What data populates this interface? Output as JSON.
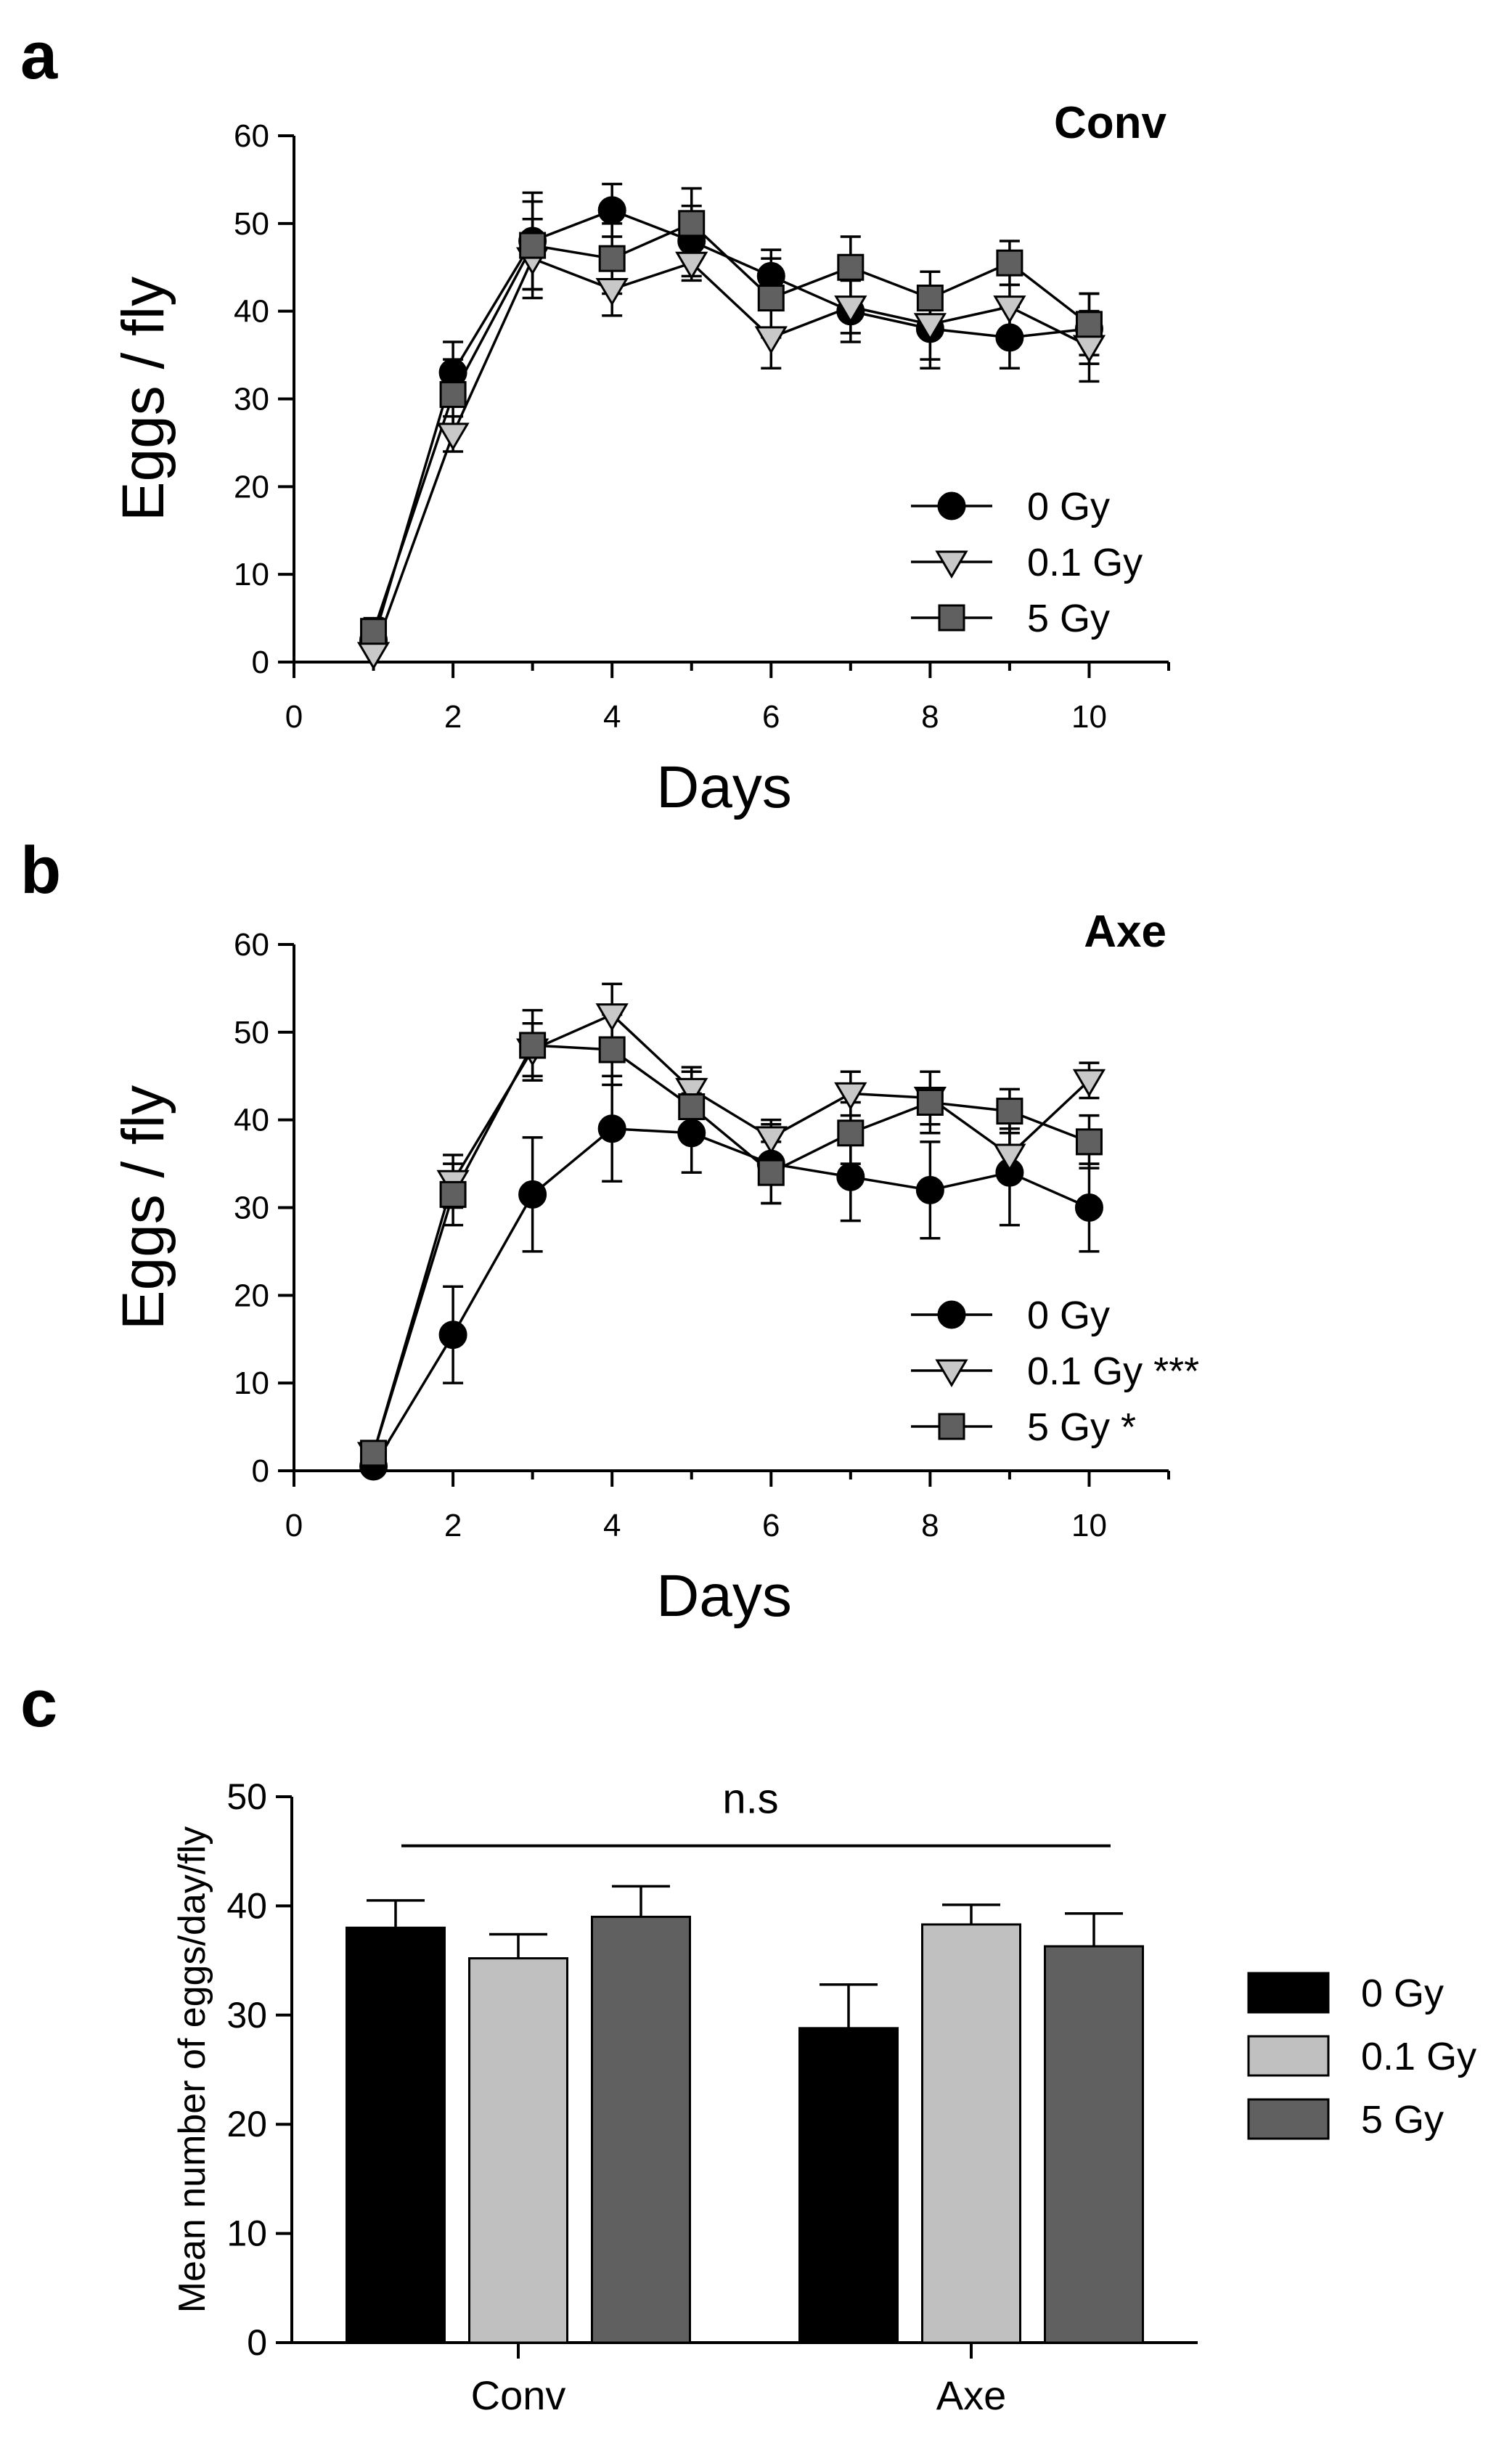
{
  "panels": [
    {
      "letter": "a"
    },
    {
      "letter": "b"
    },
    {
      "letter": "c"
    }
  ],
  "chart_data": [
    {
      "type": "line",
      "title": "Conv",
      "xlabel": "Days",
      "ylabel": "Eggs / fly",
      "xlim": [
        0,
        11
      ],
      "ylim": [
        0,
        60
      ],
      "xticks": [
        "0",
        "2",
        "4",
        "6",
        "8",
        "10"
      ],
      "yticks": [
        "0",
        "10",
        "20",
        "30",
        "40",
        "50",
        "60"
      ],
      "legend_position": "bottom-right",
      "x": [
        1,
        2,
        3,
        4,
        5,
        6,
        7,
        8,
        9,
        10
      ],
      "series": [
        {
          "name": "0 Gy",
          "marker": "circle",
          "color": "#000000",
          "values": [
            2.5,
            33,
            48,
            51.5,
            48,
            44,
            40,
            38,
            37,
            38
          ],
          "errors": [
            1.0,
            3.5,
            5.5,
            3.0,
            4.0,
            3.0,
            3.5,
            4.5,
            3.5,
            4.0
          ]
        },
        {
          "name": "0.1 Gy",
          "marker": "triangle-down",
          "color": "#c8c8c8",
          "values": [
            1,
            26,
            46,
            42.5,
            45.5,
            37,
            40.5,
            38.5,
            40.5,
            36
          ],
          "errors": [
            1.0,
            2.0,
            4.5,
            3.0,
            2.0,
            3.5,
            3.0,
            4.0,
            2.5,
            4.0
          ]
        },
        {
          "name": "5 Gy",
          "marker": "square",
          "color": "#606060",
          "values": [
            3.5,
            30.5,
            47.5,
            46,
            50,
            41.5,
            45,
            41.5,
            45.5,
            38.5
          ],
          "errors": [
            1.5,
            4.0,
            5.0,
            4.0,
            4.0,
            4.5,
            3.5,
            3.0,
            2.5,
            3.5
          ]
        }
      ]
    },
    {
      "type": "line",
      "title": "Axe",
      "xlabel": "Days",
      "ylabel": "Eggs / fly",
      "xlim": [
        0,
        11
      ],
      "ylim": [
        0,
        60
      ],
      "xticks": [
        "0",
        "2",
        "4",
        "6",
        "8",
        "10"
      ],
      "yticks": [
        "0",
        "10",
        "20",
        "30",
        "40",
        "50",
        "60"
      ],
      "legend_position": "bottom-right",
      "x": [
        1,
        2,
        3,
        4,
        5,
        6,
        7,
        8,
        9,
        10
      ],
      "series": [
        {
          "name": "0 Gy",
          "marker": "circle",
          "color": "#000000",
          "values": [
            0.5,
            15.5,
            31.5,
            39,
            38.5,
            35,
            33.5,
            32,
            34,
            30
          ],
          "errors": [
            0.5,
            5.5,
            6.5,
            6.0,
            4.5,
            4.5,
            5.0,
            5.5,
            6.0,
            5.0
          ]
        },
        {
          "name": "0.1 Gy ***",
          "marker": "triangle-down",
          "color": "#c8c8c8",
          "values": [
            2,
            33,
            48,
            52,
            43.5,
            38,
            43,
            42.5,
            36,
            44.5
          ],
          "errors": [
            1.0,
            3.0,
            3.0,
            3.5,
            2.5,
            2.0,
            2.5,
            3.0,
            3.0,
            2.0
          ]
        },
        {
          "name": "5 Gy *",
          "marker": "square",
          "color": "#606060",
          "values": [
            2,
            31.5,
            48.5,
            48,
            41.5,
            34,
            38.5,
            42,
            41,
            37.5
          ],
          "errors": [
            1.0,
            3.5,
            4.0,
            4.0,
            4.0,
            3.5,
            3.5,
            3.5,
            2.5,
            3.0
          ]
        }
      ]
    },
    {
      "type": "bar",
      "title": "",
      "xlabel": "",
      "ylabel": "Mean number of eggs/day/fly",
      "ylim": [
        0,
        50
      ],
      "yticks": [
        "0",
        "10",
        "20",
        "30",
        "40",
        "50"
      ],
      "categories": [
        "Conv",
        "Axe"
      ],
      "annotation": "n.s",
      "legend_position": "right",
      "series": [
        {
          "name": "0 Gy",
          "color": "#000000",
          "values": [
            38,
            28.8
          ],
          "errors": [
            2.5,
            4.0
          ]
        },
        {
          "name": "0.1 Gy",
          "color": "#c0c0c0",
          "values": [
            35.2,
            38.3
          ],
          "errors": [
            2.2,
            1.8
          ]
        },
        {
          "name": "5 Gy",
          "color": "#606060",
          "values": [
            39,
            36.3
          ],
          "errors": [
            2.8,
            3.0
          ]
        }
      ]
    }
  ]
}
